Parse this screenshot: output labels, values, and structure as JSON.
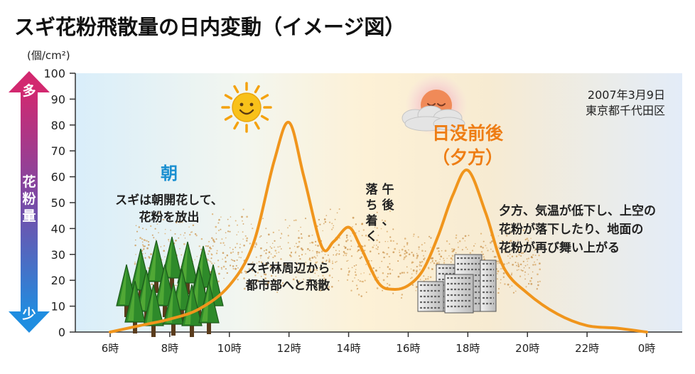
{
  "chart_data": {
    "type": "line",
    "title": "スギ花粉飛散量の日内変動（イメージ図）",
    "ylabel": "花粉量",
    "y_unit": "(個/cm²)",
    "ylim": [
      0,
      100
    ],
    "y_ticks": [
      0,
      10,
      20,
      30,
      40,
      50,
      60,
      70,
      80,
      90,
      100
    ],
    "y_tick_labels": [
      "0",
      "10",
      "20",
      "30",
      "40",
      "50",
      "60",
      "70",
      "80",
      "90",
      "100"
    ],
    "y_arrow_top": "多",
    "y_arrow_bottom": "少",
    "x_hours": [
      6,
      8,
      10,
      12,
      14,
      16,
      18,
      20,
      22,
      24
    ],
    "x_tick_labels": [
      "6時",
      "8時",
      "10時",
      "12時",
      "14時",
      "16時",
      "18時",
      "20時",
      "22時",
      "0時"
    ],
    "date_label": "2007年3月9日",
    "location_label": "東京都千代田区",
    "series": [
      {
        "color": "#f0951c",
        "x": [
          6,
          7,
          8,
          9,
          10,
          10.8,
          11.5,
          12,
          12.5,
          13.1,
          13.5,
          14,
          14.4,
          15,
          15.5,
          16,
          16.5,
          17,
          17.5,
          18,
          18.6,
          19.2,
          20,
          21,
          22,
          23,
          24
        ],
        "y": [
          0,
          2.5,
          5,
          9,
          18,
          34,
          66,
          81,
          60,
          33,
          35,
          40.5,
          33,
          19,
          16.5,
          18,
          24,
          37,
          53,
          62.5,
          46,
          25,
          15,
          7,
          2.5,
          1.5,
          0
        ]
      }
    ],
    "annotations": {
      "morning_title": "朝",
      "morning_text": [
        "スギは朝開花して、",
        "花粉を放出"
      ],
      "forest_text": [
        "スギ林周辺から",
        "都市部へと飛散"
      ],
      "afternoon_text": [
        "午後、",
        "落ち着く"
      ],
      "sunset_title": [
        "日没前後",
        "（夕方）"
      ],
      "evening_text": [
        "夕方、気温が低下し、上空の",
        "花粉が落下したり、地面の",
        "花粉が再び舞い上がる"
      ]
    },
    "colors": {
      "morning_accent": "#1a8fd0",
      "sunset_accent": "#ee7d14",
      "arrow_top": "#d2286f",
      "arrow_bottom": "#1f8de0"
    }
  }
}
